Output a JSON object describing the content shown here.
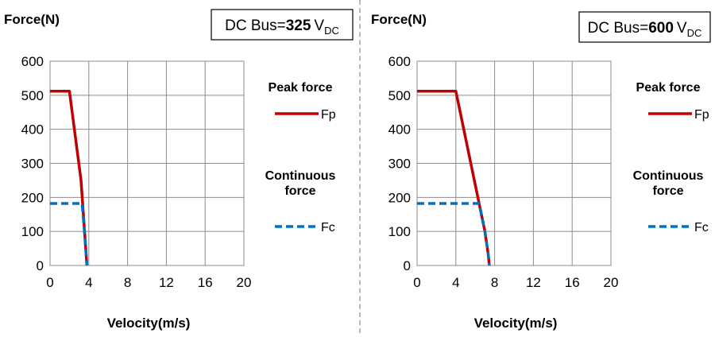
{
  "chart_data": [
    {
      "type": "line",
      "ylabel": "Force(N)",
      "xlabel": "Velocity(m/s)",
      "bus_label_prefix": "DC Bus=",
      "bus_voltage": "325",
      "bus_unit": "V",
      "bus_unit_sub": "DC",
      "xlim": [
        0,
        20
      ],
      "ylim": [
        0,
        600
      ],
      "xticks": [
        "0",
        "4",
        "8",
        "12",
        "16",
        "20"
      ],
      "yticks": [
        "0",
        "100",
        "200",
        "300",
        "400",
        "500",
        "600"
      ],
      "grid": true,
      "legend_position": "right",
      "series": [
        {
          "group_label": "Peak force",
          "name": "Fp",
          "color": "#c00000",
          "style": "solid",
          "points": [
            [
              0,
              512
            ],
            [
              2.0,
              512
            ],
            [
              3.2,
              250
            ],
            [
              3.8,
              0
            ]
          ]
        },
        {
          "group_label": "Continuous force",
          "name": "Fc",
          "color": "#0070c0",
          "style": "dashed",
          "points": [
            [
              0,
              182
            ],
            [
              3.3,
              182
            ],
            [
              3.55,
              100
            ],
            [
              3.8,
              0
            ]
          ]
        }
      ]
    },
    {
      "type": "line",
      "ylabel": "Force(N)",
      "xlabel": "Velocity(m/s)",
      "bus_label_prefix": "DC Bus=",
      "bus_voltage": "600",
      "bus_unit": "V",
      "bus_unit_sub": "DC",
      "xlim": [
        0,
        20
      ],
      "ylim": [
        0,
        600
      ],
      "xticks": [
        "0",
        "4",
        "8",
        "12",
        "16",
        "20"
      ],
      "yticks": [
        "0",
        "100",
        "200",
        "300",
        "400",
        "500",
        "600"
      ],
      "grid": true,
      "legend_position": "right",
      "series": [
        {
          "group_label": "Peak force",
          "name": "Fp",
          "color": "#c00000",
          "style": "solid",
          "points": [
            [
              0,
              512
            ],
            [
              4.0,
              512
            ],
            [
              6.4,
              182
            ],
            [
              7.0,
              100
            ],
            [
              7.35,
              30
            ],
            [
              7.45,
              0
            ]
          ]
        },
        {
          "group_label": "Continuous force",
          "name": "Fc",
          "color": "#0070c0",
          "style": "dashed",
          "points": [
            [
              0,
              182
            ],
            [
              6.4,
              182
            ],
            [
              7.0,
              100
            ],
            [
              7.35,
              30
            ],
            [
              7.45,
              0
            ]
          ]
        }
      ]
    }
  ]
}
